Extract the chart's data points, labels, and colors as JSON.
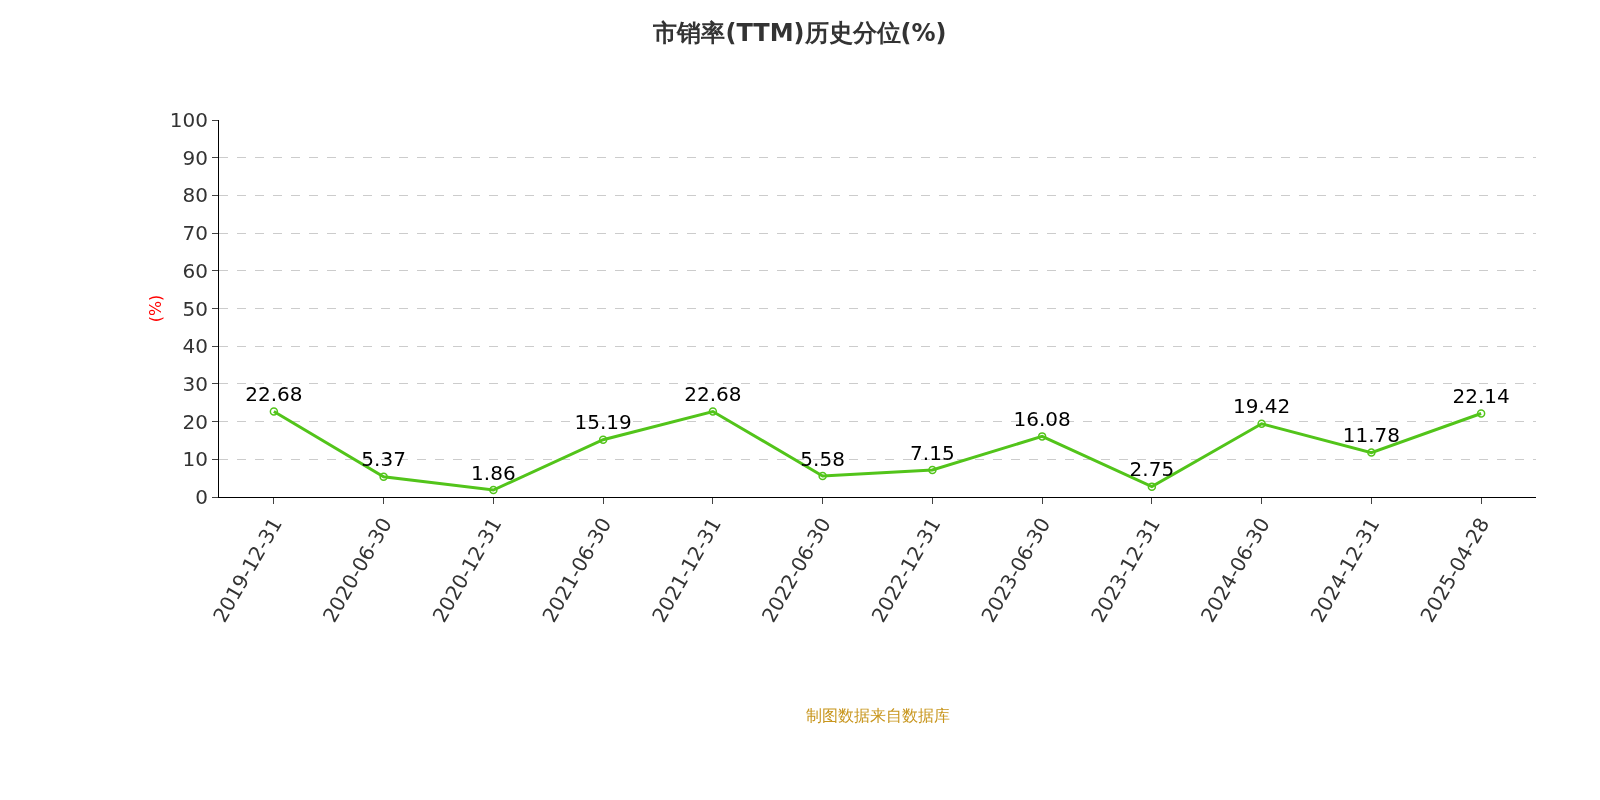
{
  "chart_data": {
    "type": "line",
    "title": "市销率(TTM)历史分位(%)",
    "ylabel": "(%)",
    "categories": [
      "2019-12-31",
      "2020-06-30",
      "2020-12-31",
      "2021-06-30",
      "2021-12-31",
      "2022-06-30",
      "2022-12-31",
      "2023-06-30",
      "2023-12-31",
      "2024-06-30",
      "2024-12-31",
      "2025-04-28"
    ],
    "series": [
      {
        "color": "#52c41a",
        "values": [
          22.68,
          5.37,
          1.86,
          15.19,
          22.68,
          5.58,
          7.15,
          16.08,
          2.75,
          19.42,
          11.78,
          22.14
        ]
      }
    ],
    "ylim": [
      0,
      100
    ],
    "yticks": [
      0,
      10,
      20,
      30,
      40,
      50,
      60,
      70,
      80,
      90,
      100
    ],
    "grid": "y",
    "data_labels": true,
    "marker": "circle",
    "line_style": "solid",
    "annotations": [
      "制图数据来自数据库"
    ]
  }
}
